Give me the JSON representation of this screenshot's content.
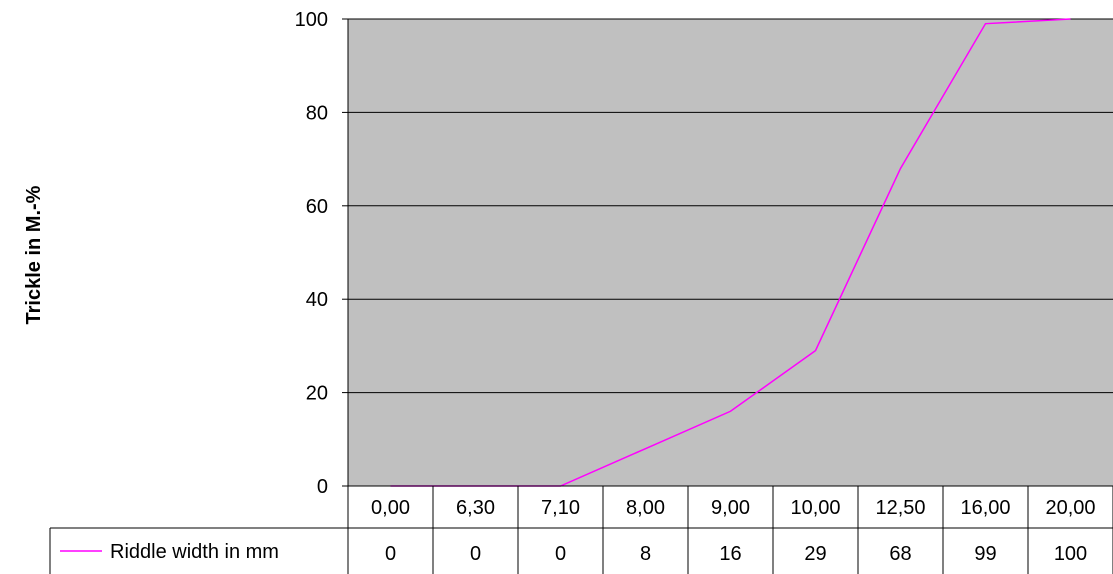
{
  "chart_data": {
    "type": "line",
    "categories": [
      "0,00",
      "6,30",
      "7,10",
      "8,00",
      "9,00",
      "10,00",
      "12,50",
      "16,00",
      "20,00"
    ],
    "series": [
      {
        "name": "Riddle width in mm",
        "values": [
          0,
          0,
          0,
          8,
          16,
          29,
          68,
          99,
          100
        ],
        "value_labels": [
          "0",
          "0",
          "0",
          "8",
          "16",
          "29",
          "68",
          "99",
          "100"
        ],
        "color": "#ff00ff"
      }
    ],
    "ylabel": "Trickle in M.-%",
    "ylim": [
      0,
      100
    ],
    "yticks": [
      "0",
      "20",
      "40",
      "60",
      "80",
      "100"
    ],
    "grid": true,
    "plot_background": "#c0c0c0",
    "data_table": true
  }
}
